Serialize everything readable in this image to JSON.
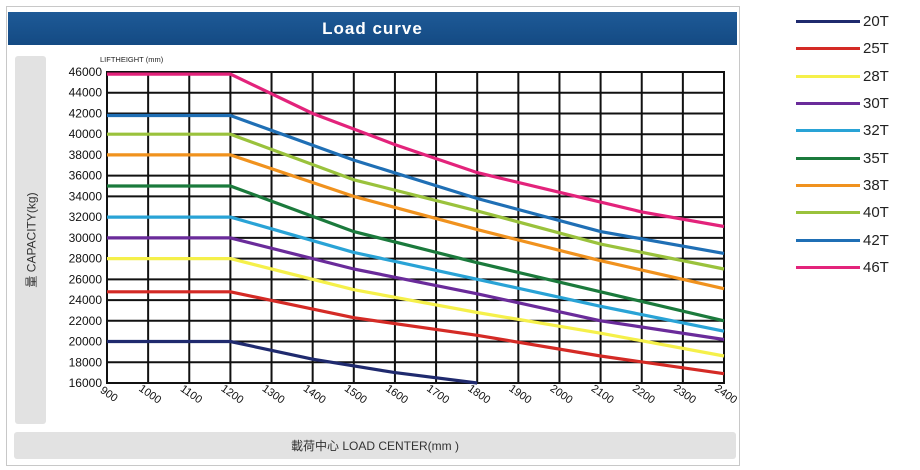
{
  "chart_data": {
    "type": "line",
    "title": "Load curve",
    "xlabel": "載荷中心 LOAD CENTER(mm )",
    "ylabel": "量 CAPACITY(kg)",
    "y_unit_note": "LIFTHEIGHT (mm)",
    "x_ticks": [
      900,
      1000,
      1100,
      1200,
      1300,
      1400,
      1500,
      1600,
      1700,
      1800,
      1900,
      2000,
      2100,
      2200,
      2300,
      2400
    ],
    "y_ticks": [
      16000,
      18000,
      20000,
      22000,
      24000,
      26000,
      28000,
      30000,
      32000,
      34000,
      36000,
      38000,
      40000,
      42000,
      44000,
      46000
    ],
    "xlim": [
      900,
      2400
    ],
    "ylim": [
      16000,
      46000
    ],
    "grid": true,
    "legend_position": "right",
    "series": [
      {
        "name": "20T",
        "color": "#1f2a6e",
        "x": [
          900,
          1200,
          1400,
          1600,
          1800
        ],
        "y": [
          20000,
          20000,
          18300,
          17000,
          15800
        ]
      },
      {
        "name": "25T",
        "color": "#d42a25",
        "x": [
          900,
          1200,
          1500,
          1800,
          2100,
          2400
        ],
        "y": [
          24800,
          24800,
          22300,
          20600,
          18600,
          16900
        ]
      },
      {
        "name": "28T",
        "color": "#f5f04a",
        "x": [
          900,
          1200,
          1500,
          1800,
          2100,
          2400
        ],
        "y": [
          28000,
          28000,
          25000,
          22800,
          20800,
          18600
        ]
      },
      {
        "name": "30T",
        "color": "#6a2b9a",
        "x": [
          900,
          1200,
          1500,
          1800,
          2100,
          2400
        ],
        "y": [
          30000,
          30000,
          27000,
          24600,
          22000,
          20200
        ]
      },
      {
        "name": "32T",
        "color": "#29a3d6",
        "x": [
          900,
          1200,
          1500,
          1800,
          2100,
          2400
        ],
        "y": [
          32000,
          32000,
          28600,
          26000,
          23400,
          21000
        ]
      },
      {
        "name": "35T",
        "color": "#1b7a3c",
        "x": [
          900,
          1200,
          1500,
          1800,
          2100,
          2400
        ],
        "y": [
          35000,
          35000,
          30600,
          27600,
          24800,
          22000
        ]
      },
      {
        "name": "38T",
        "color": "#f0921e",
        "x": [
          900,
          1200,
          1500,
          1800,
          2100,
          2400
        ],
        "y": [
          38000,
          38000,
          34000,
          30800,
          27800,
          25100
        ]
      },
      {
        "name": "40T",
        "color": "#9ac23c",
        "x": [
          900,
          1200,
          1500,
          1800,
          2100,
          2400
        ],
        "y": [
          40000,
          40000,
          35600,
          32600,
          29400,
          27000
        ]
      },
      {
        "name": "42T",
        "color": "#1f6fb5",
        "x": [
          900,
          1200,
          1500,
          1800,
          2100,
          2400
        ],
        "y": [
          41800,
          41800,
          37500,
          33800,
          30600,
          28500
        ]
      },
      {
        "name": "46T",
        "color": "#e3237b",
        "x": [
          900,
          1200,
          1400,
          1600,
          1800,
          2000,
          2200,
          2400
        ],
        "y": [
          45800,
          45800,
          42000,
          39000,
          36300,
          34400,
          32500,
          31100
        ]
      }
    ]
  }
}
